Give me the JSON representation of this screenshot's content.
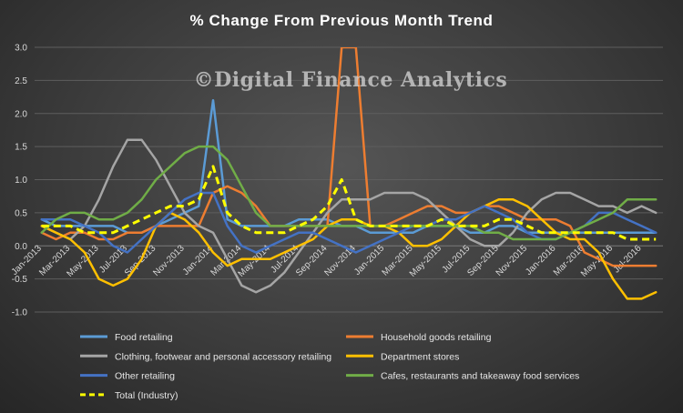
{
  "chart_data": {
    "type": "line",
    "title": "% Change From Previous Month Trend",
    "watermark": "©Digital Finance Analytics",
    "ylim": [
      -1.0,
      3.0
    ],
    "yticks": [
      "-1.0",
      "-0.5",
      "0.0",
      "0.5",
      "1.0",
      "1.5",
      "2.0",
      "2.5",
      "3.0"
    ],
    "ytick_values": [
      -1.0,
      -0.5,
      0.0,
      0.5,
      1.0,
      1.5,
      2.0,
      2.5,
      3.0
    ],
    "grid": true,
    "legend_position": "bottom",
    "x": [
      "Jan-2013",
      "Feb-2013",
      "Mar-2013",
      "Apr-2013",
      "May-2013",
      "Jun-2013",
      "Jul-2013",
      "Aug-2013",
      "Sep-2013",
      "Oct-2013",
      "Nov-2013",
      "Dec-2013",
      "Jan-2014",
      "Feb-2014",
      "Mar-2014",
      "Apr-2014",
      "May-2014",
      "Jun-2014",
      "Jul-2014",
      "Aug-2014",
      "Sep-2014",
      "Oct-2014",
      "Nov-2014",
      "Dec-2014",
      "Jan-2015",
      "Feb-2015",
      "Mar-2015",
      "Apr-2015",
      "May-2015",
      "Jun-2015",
      "Jul-2015",
      "Aug-2015",
      "Sep-2015",
      "Oct-2015",
      "Nov-2015",
      "Dec-2015",
      "Jan-2016",
      "Feb-2016",
      "Mar-2016",
      "Apr-2016",
      "May-2016",
      "Jun-2016",
      "Jul-2016",
      "Aug-2016"
    ],
    "xtick_labels": [
      {
        "index": 0,
        "label": "Jan-2013"
      },
      {
        "index": 2,
        "label": "Mar-2013"
      },
      {
        "index": 4,
        "label": "May-2013"
      },
      {
        "index": 6,
        "label": "Jul-2013"
      },
      {
        "index": 8,
        "label": "Sep-2013"
      },
      {
        "index": 10,
        "label": "Nov-2013"
      },
      {
        "index": 12,
        "label": "Jan-2014"
      },
      {
        "index": 14,
        "label": "Mar-2014"
      },
      {
        "index": 16,
        "label": "May-2014"
      },
      {
        "index": 18,
        "label": "Jul-2014"
      },
      {
        "index": 20,
        "label": "Sep-2014"
      },
      {
        "index": 22,
        "label": "Nov-2014"
      },
      {
        "index": 24,
        "label": "Jan-2015"
      },
      {
        "index": 26,
        "label": "Mar-2015"
      },
      {
        "index": 28,
        "label": "May-2015"
      },
      {
        "index": 30,
        "label": "Jul-2015"
      },
      {
        "index": 32,
        "label": "Sep-2015"
      },
      {
        "index": 34,
        "label": "Nov-2015"
      },
      {
        "index": 36,
        "label": "Jan-2016"
      },
      {
        "index": 38,
        "label": "Mar-2016"
      },
      {
        "index": 40,
        "label": "May-2016"
      },
      {
        "index": 42,
        "label": "Jul-2016"
      }
    ],
    "series": [
      {
        "name": "Food retailing",
        "color": "#5b9bd5",
        "dashed": false,
        "values": [
          0.4,
          0.3,
          0.3,
          0.3,
          0.3,
          0.3,
          0.2,
          0.2,
          0.3,
          0.4,
          0.5,
          0.6,
          2.2,
          0.4,
          0.3,
          0.3,
          0.3,
          0.3,
          0.4,
          0.4,
          0.4,
          0.3,
          0.3,
          0.2,
          0.2,
          0.2,
          0.2,
          0.3,
          0.3,
          0.3,
          0.2,
          0.2,
          0.3,
          0.3,
          0.2,
          0.2,
          0.2,
          0.2,
          0.2,
          0.2,
          0.2,
          0.2,
          0.2,
          0.2
        ]
      },
      {
        "name": "Household goods retailing",
        "color": "#ed7d31",
        "dashed": false,
        "values": [
          0.2,
          0.1,
          0.2,
          0.2,
          0.1,
          0.1,
          0.2,
          0.2,
          0.3,
          0.3,
          0.3,
          0.3,
          0.8,
          0.9,
          0.8,
          0.6,
          0.3,
          0.3,
          0.3,
          0.3,
          0.3,
          3.0,
          3.0,
          0.3,
          0.3,
          0.4,
          0.5,
          0.6,
          0.6,
          0.5,
          0.5,
          0.6,
          0.6,
          0.5,
          0.4,
          0.4,
          0.4,
          0.3,
          -0.1,
          -0.2,
          -0.3,
          -0.3,
          -0.3,
          -0.3
        ]
      },
      {
        "name": "Clothing, footwear and personal accessory retailing",
        "color": "#a5a5a5",
        "dashed": false,
        "values": [
          0.3,
          0.2,
          0.1,
          0.3,
          0.7,
          1.2,
          1.6,
          1.6,
          1.3,
          0.9,
          0.5,
          0.3,
          0.2,
          -0.2,
          -0.6,
          -0.7,
          -0.6,
          -0.4,
          -0.1,
          0.2,
          0.5,
          0.7,
          0.7,
          0.7,
          0.8,
          0.8,
          0.8,
          0.7,
          0.5,
          0.3,
          0.1,
          0.0,
          0.0,
          0.2,
          0.5,
          0.7,
          0.8,
          0.8,
          0.7,
          0.6,
          0.6,
          0.5,
          0.6,
          0.5
        ]
      },
      {
        "name": "Department stores",
        "color": "#ffc000",
        "dashed": false,
        "values": [
          0.3,
          0.2,
          0.1,
          -0.1,
          -0.5,
          -0.6,
          -0.5,
          -0.2,
          0.3,
          0.5,
          0.4,
          0.2,
          -0.1,
          -0.3,
          -0.2,
          -0.2,
          -0.2,
          -0.1,
          0.0,
          0.1,
          0.3,
          0.4,
          0.4,
          0.3,
          0.3,
          0.2,
          0.0,
          0.0,
          0.1,
          0.3,
          0.5,
          0.6,
          0.7,
          0.7,
          0.6,
          0.4,
          0.2,
          0.1,
          0.1,
          -0.1,
          -0.5,
          -0.8,
          -0.8,
          -0.7
        ]
      },
      {
        "name": "Other retailing",
        "color": "#4472c4",
        "dashed": false,
        "values": [
          0.4,
          0.4,
          0.4,
          0.3,
          0.2,
          0.0,
          -0.1,
          0.1,
          0.3,
          0.5,
          0.7,
          0.8,
          0.8,
          0.3,
          0.0,
          -0.1,
          0.0,
          0.1,
          0.2,
          0.2,
          0.1,
          0.0,
          -0.1,
          0.0,
          0.1,
          0.2,
          0.3,
          0.3,
          0.4,
          0.4,
          0.5,
          0.6,
          0.5,
          0.4,
          0.2,
          0.1,
          0.1,
          0.2,
          0.3,
          0.5,
          0.5,
          0.4,
          0.3,
          0.2
        ]
      },
      {
        "name": "Cafes, restaurants and takeaway food services",
        "color": "#70ad47",
        "dashed": false,
        "values": [
          0.2,
          0.4,
          0.5,
          0.5,
          0.4,
          0.4,
          0.5,
          0.7,
          1.0,
          1.2,
          1.4,
          1.5,
          1.5,
          1.3,
          0.9,
          0.5,
          0.3,
          0.3,
          0.3,
          0.3,
          0.3,
          0.3,
          0.3,
          0.3,
          0.3,
          0.3,
          0.3,
          0.3,
          0.3,
          0.3,
          0.3,
          0.2,
          0.2,
          0.1,
          0.1,
          0.1,
          0.1,
          0.2,
          0.3,
          0.4,
          0.5,
          0.7,
          0.7,
          0.7
        ]
      },
      {
        "name": "Total (Industry)",
        "color": "#ffff00",
        "dashed": true,
        "values": [
          0.3,
          0.3,
          0.3,
          0.2,
          0.2,
          0.2,
          0.3,
          0.4,
          0.5,
          0.6,
          0.6,
          0.7,
          1.2,
          0.5,
          0.3,
          0.2,
          0.2,
          0.2,
          0.3,
          0.4,
          0.6,
          1.0,
          0.4,
          0.3,
          0.3,
          0.3,
          0.3,
          0.3,
          0.4,
          0.3,
          0.3,
          0.3,
          0.4,
          0.4,
          0.3,
          0.2,
          0.2,
          0.2,
          0.2,
          0.2,
          0.2,
          0.1,
          0.1,
          0.1
        ]
      }
    ]
  }
}
